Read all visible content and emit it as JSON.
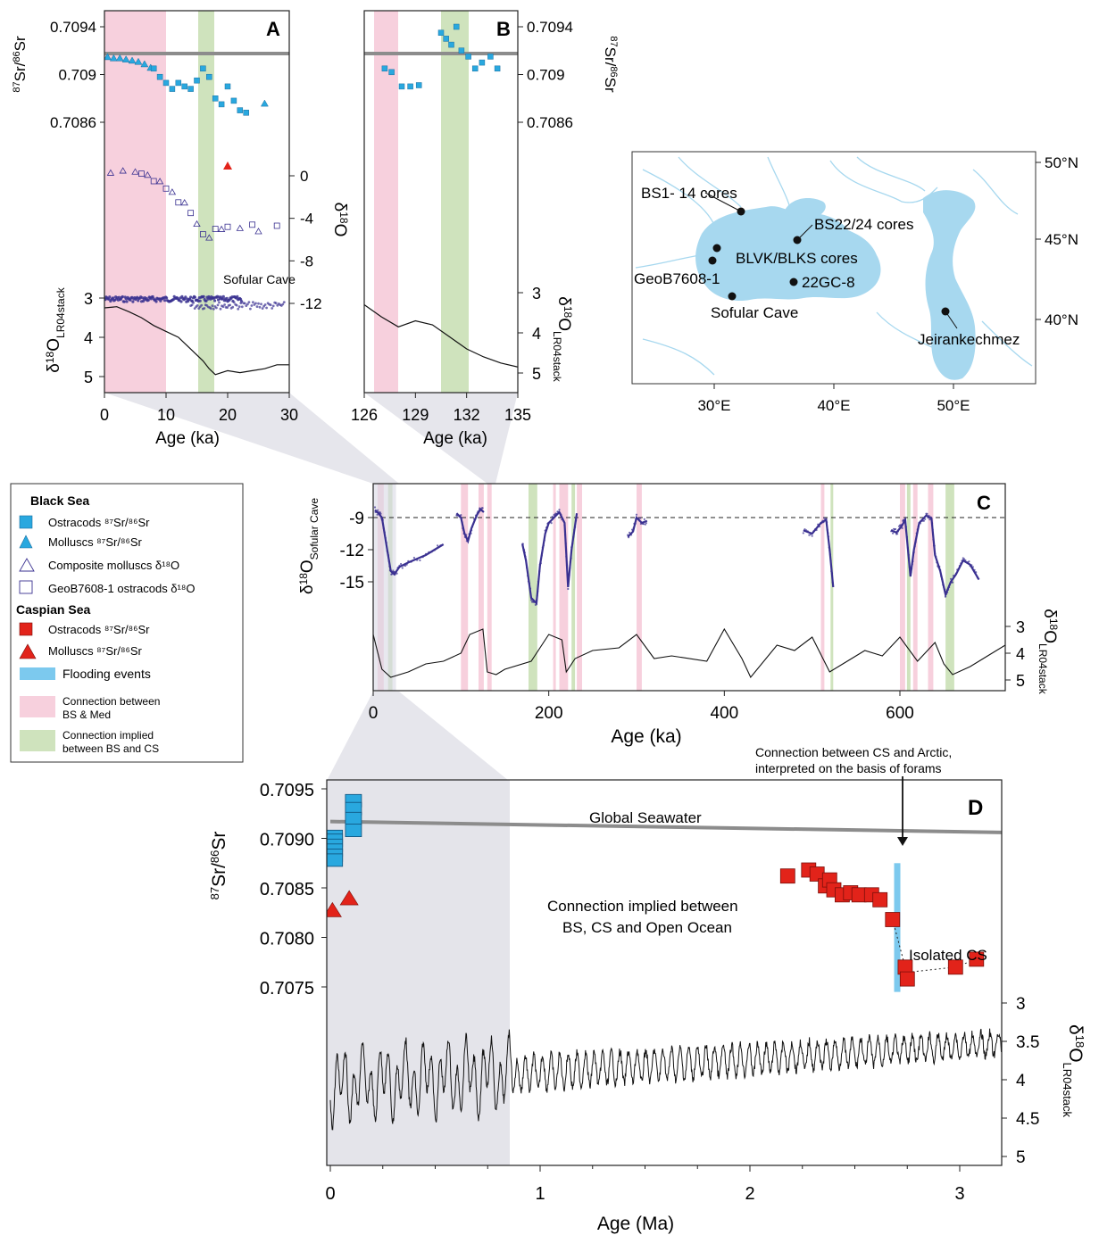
{
  "colors": {
    "black_sea_blue": "#29a8df",
    "caspian_red": "#e2231a",
    "purple": "#3a3191",
    "pink_band": "#f7d0dd",
    "green_band": "#cfe3bd",
    "flood_blue": "#7cc9ee",
    "grey_line": "#8c8c8c",
    "map_water": "#a7d8ef",
    "shade": "#e4e4ea"
  },
  "panelA": {
    "label": "A",
    "sr_ticks": [
      "0.7094",
      "0.709",
      "0.7086"
    ],
    "d18o_ticks": [
      "0",
      "-4",
      "-8",
      "-12"
    ],
    "lr04_ticks": [
      "3",
      "4",
      "5"
    ],
    "x_ticks": [
      "0",
      "10",
      "20",
      "30"
    ],
    "xlabel": "Age (ka)",
    "sofular_label": "Sofular Cave"
  },
  "panelB": {
    "label": "B",
    "sr_ticks": [
      "0.7094",
      "0.709",
      "0.7086"
    ],
    "lr04_ticks": [
      "3",
      "4",
      "5"
    ],
    "x_ticks": [
      "126",
      "129",
      "132",
      "135"
    ],
    "xlabel": "Age (ka)"
  },
  "map": {
    "lat_labels": [
      "50°N",
      "45°N",
      "40°N"
    ],
    "lon_labels": [
      "30°E",
      "40°E",
      "50°E"
    ],
    "sites": [
      "BS1- 14 cores",
      "BS22/24 cores",
      "BLVK/BLKS cores",
      "GeoB7608-1",
      "22GC-8",
      "Sofular Cave",
      "Jeirankechmez"
    ]
  },
  "legend": {
    "black_sea": "Black Sea",
    "bs_ostracods": "Ostracods ⁸⁷Sr/⁸⁶Sr",
    "bs_molluscs": "Molluscs ⁸⁷Sr/⁸⁶Sr",
    "composite": "Composite molluscs δ¹⁸O",
    "geob": "GeoB7608-1 ostracods  δ¹⁸O",
    "caspian_sea": "Caspian Sea",
    "cs_ostracods": "Ostracods ⁸⁷Sr/⁸⁶Sr",
    "cs_molluscs": "Molluscs ⁸⁷Sr/⁸⁶Sr",
    "flooding": "Flooding events",
    "conn_med_1": "Connection between",
    "conn_med_2": "BS & Med",
    "conn_cs_1": "Connection implied",
    "conn_cs_2": "between BS and CS"
  },
  "panelC": {
    "label": "C",
    "sofular_ticks": [
      "-9",
      "-12",
      "-15"
    ],
    "lr04_ticks": [
      "3",
      "4",
      "5"
    ],
    "x_ticks": [
      "0",
      "200",
      "400",
      "600"
    ],
    "xlabel": "Age (ka)"
  },
  "panelD": {
    "label": "D",
    "sr_ticks": [
      "0.7095",
      "0.7090",
      "0.7085",
      "0.7080",
      "0.7075"
    ],
    "lr04_ticks": [
      "3",
      "3.5",
      "4",
      "4.5",
      "5"
    ],
    "x_ticks": [
      "0",
      "1",
      "2",
      "3"
    ],
    "xlabel": "Age (Ma)",
    "global_seawater": "Global Seawater",
    "arctic_note_1": "Connection between CS and Arctic,",
    "arctic_note_2": "interpreted on the basis of forams",
    "open_ocean_1": "Connection implied between",
    "open_ocean_2": "BS, CS and Open Ocean",
    "isolated": "Isolated CS"
  },
  "chart_data": [
    {
      "type": "scatter",
      "panel": "A",
      "xlabel": "Age (ka)",
      "xlim": [
        0,
        30
      ],
      "series": [
        {
          "name": "Molluscs 87Sr/86Sr",
          "x": [
            0.5,
            1.5,
            2.5,
            3.5,
            4.5,
            5.5,
            6.5,
            7.5,
            26
          ],
          "y": [
            0.70915,
            0.70914,
            0.70914,
            0.70913,
            0.70912,
            0.70911,
            0.70909,
            0.70906,
            0.70876
          ]
        },
        {
          "name": "Ostracods 87Sr/86Sr",
          "x": [
            8,
            9,
            10,
            11,
            12,
            13,
            14,
            15,
            16,
            17,
            18,
            19,
            20,
            21,
            22,
            23
          ],
          "y": [
            0.70905,
            0.70898,
            0.70893,
            0.70888,
            0.70893,
            0.7089,
            0.70888,
            0.70895,
            0.70905,
            0.70898,
            0.7088,
            0.70875,
            0.7089,
            0.70878,
            0.7087,
            0.70868
          ]
        },
        {
          "name": "Composite molluscs δ18O",
          "x": [
            1,
            3,
            5,
            7,
            9,
            11,
            13,
            15,
            17,
            19,
            22,
            25
          ],
          "y": [
            0.3,
            0.5,
            0.4,
            0.1,
            -0.5,
            -1.5,
            -2.5,
            -4.5,
            -5.8,
            -5,
            -4.9,
            -5.2
          ]
        },
        {
          "name": "GeoB7608-1 ostracods δ18O",
          "x": [
            6,
            8,
            10,
            12,
            14,
            16,
            18,
            20,
            24,
            28
          ],
          "y": [
            0.2,
            -0.5,
            -1.2,
            -2.5,
            -3.5,
            -5.5,
            -5.0,
            -4.8,
            -4.6,
            -4.7
          ]
        }
      ],
      "lr04_ylim": [
        5,
        3
      ],
      "lr04": {
        "x": [
          0,
          2,
          4,
          6,
          8,
          10,
          12,
          14,
          16,
          17,
          18,
          20,
          22,
          24,
          26,
          28,
          30
        ],
        "y": [
          3.25,
          3.22,
          3.35,
          3.5,
          3.7,
          3.85,
          4.0,
          4.3,
          4.6,
          4.8,
          4.95,
          4.85,
          4.9,
          4.85,
          4.8,
          4.7,
          4.7
        ]
      }
    },
    {
      "type": "scatter",
      "panel": "B",
      "xlabel": "Age (ka)",
      "xlim": [
        126,
        135
      ],
      "series": [
        {
          "name": "Ostracods 87Sr/86Sr",
          "x": [
            127.2,
            127.6,
            128.2,
            128.7,
            129.2,
            130.5,
            130.8,
            131.1,
            131.4,
            131.7,
            132.1,
            132.5,
            132.9,
            133.4,
            133.8
          ],
          "y": [
            0.70905,
            0.70902,
            0.7089,
            0.7089,
            0.70891,
            0.70935,
            0.7093,
            0.70925,
            0.7094,
            0.7092,
            0.70915,
            0.70905,
            0.7091,
            0.70915,
            0.70905
          ]
        }
      ],
      "lr04_ylim": [
        5,
        3
      ],
      "lr04": {
        "x": [
          126,
          127,
          128,
          129,
          130,
          131,
          132,
          133,
          134,
          135
        ],
        "y": [
          3.3,
          3.6,
          3.85,
          3.7,
          3.8,
          4.1,
          4.4,
          4.6,
          4.75,
          4.85
        ]
      }
    },
    {
      "type": "line",
      "panel": "C",
      "xlabel": "Age (ka)",
      "xlim": [
        0,
        720
      ],
      "sofular_ylim": [
        -17,
        -7
      ],
      "lr04_ylim": [
        5,
        3
      ],
      "lr04": {
        "x": [
          0,
          10,
          20,
          40,
          60,
          80,
          100,
          110,
          125,
          130,
          140,
          150,
          180,
          200,
          215,
          220,
          230,
          250,
          280,
          300,
          320,
          340,
          380,
          400,
          420,
          430,
          460,
          480,
          500,
          520,
          540,
          560,
          580,
          600,
          620,
          640,
          650,
          660,
          680,
          700,
          720
        ],
        "y": [
          3.3,
          4.6,
          4.9,
          4.7,
          4.4,
          4.3,
          4.0,
          3.3,
          3.1,
          4.7,
          4.8,
          4.6,
          4.3,
          3.3,
          3.5,
          4.7,
          4.2,
          3.9,
          3.8,
          3.3,
          4.2,
          4.1,
          4.3,
          3.1,
          4.2,
          4.9,
          3.7,
          3.9,
          3.4,
          4.7,
          4.3,
          3.9,
          4.1,
          3.4,
          4.3,
          3.6,
          4.4,
          4.8,
          4.5,
          4.1,
          3.7
        ]
      },
      "dashed_level": -9
    },
    {
      "type": "scatter",
      "panel": "D",
      "xlabel": "Age (Ma)",
      "xlim": [
        0,
        3.2
      ],
      "ylim": [
        0.7075,
        0.7095
      ],
      "series": [
        {
          "name": "Black Sea Ostracods 87Sr/86Sr",
          "x": [
            0.02,
            0.02,
            0.02,
            0.02,
            0.02,
            0.02,
            0.11,
            0.11,
            0.11,
            0.11
          ],
          "y": [
            0.70902,
            0.70898,
            0.70893,
            0.70888,
            0.70883,
            0.70878,
            0.70938,
            0.7093,
            0.7092,
            0.70908
          ]
        },
        {
          "name": "Black Sea Molluscs 87Sr/86Sr",
          "x": [
            0.01,
            0.09
          ],
          "y": [
            0.70828,
            0.7084
          ]
        },
        {
          "name": "Caspian Ostracods 87Sr/86Sr",
          "x": [
            2.18,
            2.28,
            2.32,
            2.36,
            2.38,
            2.4,
            2.44,
            2.48,
            2.52,
            2.58,
            2.62,
            2.68,
            2.74,
            2.75,
            2.98,
            3.08
          ],
          "y": [
            0.70862,
            0.70868,
            0.70864,
            0.70852,
            0.70858,
            0.70848,
            0.70843,
            0.70845,
            0.70843,
            0.70843,
            0.70838,
            0.70818,
            0.7077,
            0.70758,
            0.7077,
            0.70778
          ]
        }
      ],
      "global_seawater": {
        "x": [
          0,
          3.2
        ],
        "y": [
          0.70917,
          0.70906
        ]
      },
      "flooding_event_ma": 2.7,
      "shaded_range_ma": [
        0,
        0.85
      ]
    }
  ]
}
